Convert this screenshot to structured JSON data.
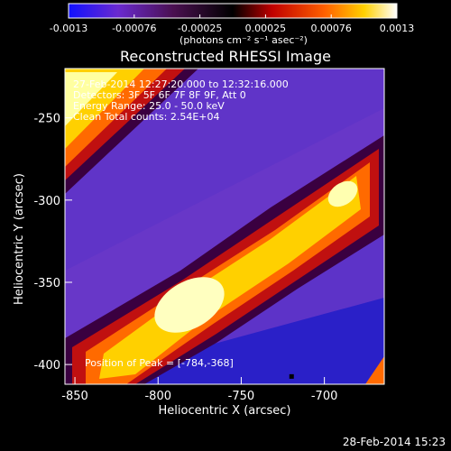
{
  "chart_data": {
    "type": "heatmap",
    "title": "Reconstructed RHESSI Image",
    "xlabel": "Heliocentric X (arcsec)",
    "ylabel": "Heliocentric Y (arcsec)",
    "x_ticks": [
      "-850",
      "-800",
      "-750",
      "-700"
    ],
    "x_tick_values": [
      -850,
      -800,
      -750,
      -700
    ],
    "y_ticks": [
      "-250",
      "-300",
      "-350",
      "-400"
    ],
    "y_tick_values": [
      -250,
      -300,
      -350,
      -400
    ],
    "xlim": [
      -856,
      -664
    ],
    "ylim": [
      -412,
      -220
    ],
    "colorbar": {
      "tick_labels": [
        "-0.0013",
        "-0.00076",
        "-0.00025",
        "0.00025",
        "0.00076",
        "0.0013"
      ],
      "range": [
        -0.0013,
        0.0013
      ],
      "unit_label": "(photons cm⁻² s⁻¹ asec⁻²)",
      "colors": [
        "#1010ff",
        "#8020c0",
        "#400040",
        "#000000",
        "#c00000",
        "#ff6000",
        "#ffd000",
        "#ffffff"
      ]
    },
    "annotations": {
      "time_range": "27-Feb-2014 12:27:20.000 to 12:32:16.000",
      "detectors": "Detectors: 3F 5F 6F 7F 8F 9F, Att 0",
      "energy": "Energy Range: 25.0 - 50.0 keV",
      "counts": "Clean     Total counts: 2.54E+04",
      "peak": "Position of Peak = [-784,-368]"
    },
    "peak_position": [
      -784,
      -368
    ],
    "footer_timestamp": "28-Feb-2014 15:23"
  }
}
